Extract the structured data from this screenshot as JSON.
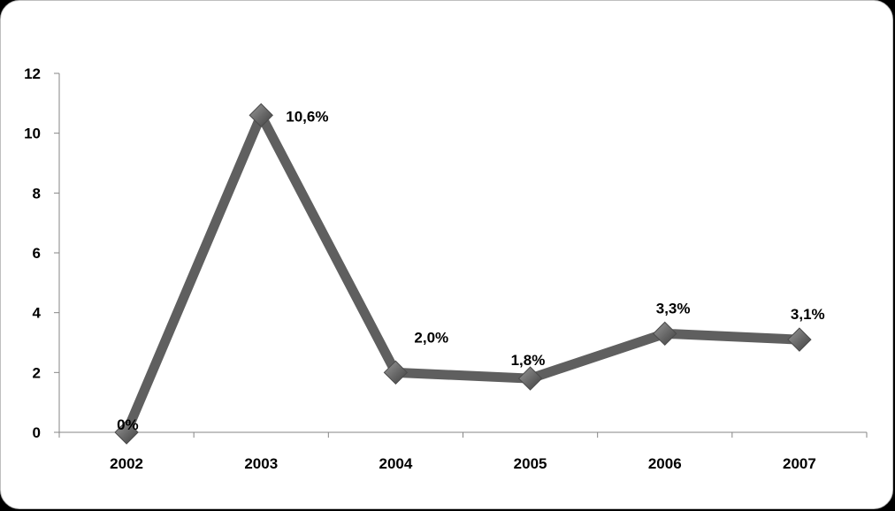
{
  "chart_data": {
    "type": "line",
    "title": "",
    "xlabel": "",
    "ylabel": "",
    "categories": [
      "2002",
      "2003",
      "2004",
      "2005",
      "2006",
      "2007"
    ],
    "series": [
      {
        "values": [
          0,
          10.6,
          2.0,
          1.8,
          3.3,
          3.1
        ],
        "labels": [
          "0%",
          "10,6%",
          "2,0%",
          "1,8%",
          "3,3%",
          "3,1%"
        ]
      }
    ],
    "ylim": [
      0,
      12
    ],
    "yticks": [
      0,
      2,
      4,
      6,
      8,
      10,
      12
    ],
    "grid": false,
    "legend": "none",
    "line_color": "#5f5f5f",
    "marker_color": "#6e6e6e",
    "marker": "diamond"
  }
}
